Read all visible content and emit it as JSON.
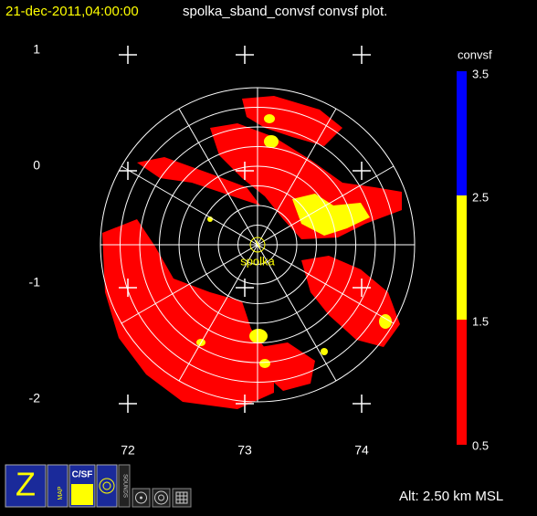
{
  "header": {
    "timestamp": "21-dec-2011,04:00:00",
    "title": "spolka_sband_convsf convsf  plot."
  },
  "y_labels": [
    "1",
    "0",
    "-1",
    "-2"
  ],
  "x_labels": [
    "72",
    "73",
    "74"
  ],
  "colorbar": {
    "title": "convsf",
    "labels": [
      "3.5",
      "2.5",
      "1.5",
      "0.5"
    ]
  },
  "station": "spolka",
  "altitude": "Alt: 2.50 km MSL",
  "toolbar": {
    "zoom": "Z",
    "map": "MAP",
    "csf": "C/SF",
    "sounds": "SOUNDS"
  }
}
